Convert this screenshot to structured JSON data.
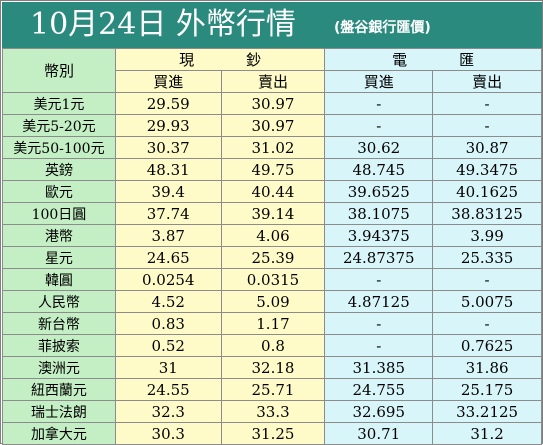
{
  "title": "10月24日 外幣行情",
  "subtitle": "(盤谷銀行匯價)",
  "header": {
    "currency_label": "幣別",
    "cash_label": "現鈔",
    "cash_chars": [
      "現",
      "鈔"
    ],
    "tt_label": "電匯",
    "tt_chars": [
      "電",
      "匯"
    ],
    "buy_label": "買進",
    "sell_label": "賣出"
  },
  "rows": [
    {
      "currency": "美元1元",
      "cash_buy": "29.59",
      "cash_sell": "30.97",
      "tt_buy": "-",
      "tt_sell": "-"
    },
    {
      "currency": "美元5-20元",
      "cash_buy": "29.93",
      "cash_sell": "30.97",
      "tt_buy": "-",
      "tt_sell": "-"
    },
    {
      "currency": "美元50-100元",
      "cash_buy": "30.37",
      "cash_sell": "31.02",
      "tt_buy": "30.62",
      "tt_sell": "30.87"
    },
    {
      "currency": "英鎊",
      "cash_buy": "48.31",
      "cash_sell": "49.75",
      "tt_buy": "48.745",
      "tt_sell": "49.3475"
    },
    {
      "currency": "歐元",
      "cash_buy": "39.4",
      "cash_sell": "40.44",
      "tt_buy": "39.6525",
      "tt_sell": "40.1625"
    },
    {
      "currency": "100日圓",
      "cash_buy": "37.74",
      "cash_sell": "39.14",
      "tt_buy": "38.1075",
      "tt_sell": "38.83125"
    },
    {
      "currency": "港幣",
      "cash_buy": "3.87",
      "cash_sell": "4.06",
      "tt_buy": "3.94375",
      "tt_sell": "3.99"
    },
    {
      "currency": "星元",
      "cash_buy": "24.65",
      "cash_sell": "25.39",
      "tt_buy": "24.87375",
      "tt_sell": "25.335"
    },
    {
      "currency": "韓圓",
      "cash_buy": "0.0254",
      "cash_sell": "0.0315",
      "tt_buy": "-",
      "tt_sell": "-"
    },
    {
      "currency": "人民幣",
      "cash_buy": "4.52",
      "cash_sell": "5.09",
      "tt_buy": "4.87125",
      "tt_sell": "5.0075"
    },
    {
      "currency": "新台幣",
      "cash_buy": "0.83",
      "cash_sell": "1.17",
      "tt_buy": "-",
      "tt_sell": "-"
    },
    {
      "currency": "菲披索",
      "cash_buy": "0.52",
      "cash_sell": "0.8",
      "tt_buy": "-",
      "tt_sell": "0.7625"
    },
    {
      "currency": "澳洲元",
      "cash_buy": "31",
      "cash_sell": "32.18",
      "tt_buy": "31.385",
      "tt_sell": "31.86"
    },
    {
      "currency": "紐西蘭元",
      "cash_buy": "24.55",
      "cash_sell": "25.71",
      "tt_buy": "24.755",
      "tt_sell": "25.175"
    },
    {
      "currency": "瑞士法朗",
      "cash_buy": "32.3",
      "cash_sell": "33.3",
      "tt_buy": "32.695",
      "tt_sell": "33.2125"
    },
    {
      "currency": "加拿大元",
      "cash_buy": "30.3",
      "cash_sell": "31.25",
      "tt_buy": "30.71",
      "tt_sell": "31.2"
    }
  ],
  "colors": {
    "title_bar": "#2a8a7e",
    "label_column": "#c4eec4",
    "cash_columns": "#fefbc8",
    "tt_columns": "#d8f6fa"
  }
}
